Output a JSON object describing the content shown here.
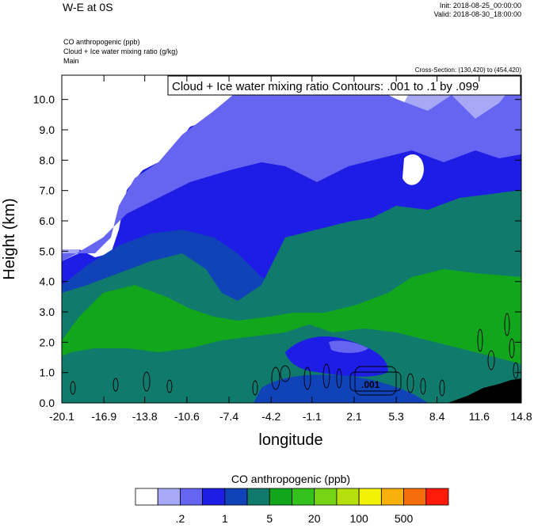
{
  "header": {
    "title": "W-E at 0S",
    "init": "Init: 2018-08-25_00:00:00",
    "valid": "Valid: 2018-08-30_18:00:00",
    "subtitles": [
      "CO anthropogenic   (ppb)",
      "Cloud + Ice water mixing ratio   (g/kg)",
      "Main"
    ],
    "cross_section": "Cross-Section: (130,420) to (454,420)"
  },
  "chart_data": {
    "type": "heatmap",
    "title": "Cloud + Ice water mixing ratio Contours: .001 to .1 by .099",
    "xlabel": "longitude",
    "ylabel": "Height (km)",
    "xlim": [
      -20.1,
      14.8
    ],
    "ylim": [
      0.0,
      10.8
    ],
    "x_ticks": [
      "-20.1",
      "-16.9",
      "-13.8",
      "-10.6",
      "-7.4",
      "-4.2",
      "-1.1",
      "2.1",
      "5.3",
      "8.4",
      "11.6",
      "14.8"
    ],
    "y_ticks": [
      "0.0",
      "1.0",
      "2.0",
      "3.0",
      "4.0",
      "5.0",
      "6.0",
      "7.0",
      "8.0",
      "9.0",
      "10.0"
    ],
    "contour_label": ".001",
    "colorbar": {
      "title": "CO anthropogenic  (ppb)",
      "labels": [
        ".2",
        "1",
        "5",
        "20",
        "100",
        "500"
      ],
      "colors": [
        "#ffffff",
        "#a7a9f6",
        "#6565f2",
        "#1d1de6",
        "#1042b8",
        "#107a6c",
        "#12a61c",
        "#33c21c",
        "#76d416",
        "#b5e00e",
        "#f2f207",
        "#f7b10a",
        "#f76d0c",
        "#ff1a0a"
      ]
    },
    "colors": {
      "white": "#ffffff",
      "light_blue": "#a7a9f6",
      "medium_blue": "#6565f2",
      "blue": "#1d1de6",
      "dark_blue": "#1042b8",
      "teal": "#107a6c",
      "green": "#12a61c",
      "terrain": "#000000"
    }
  }
}
